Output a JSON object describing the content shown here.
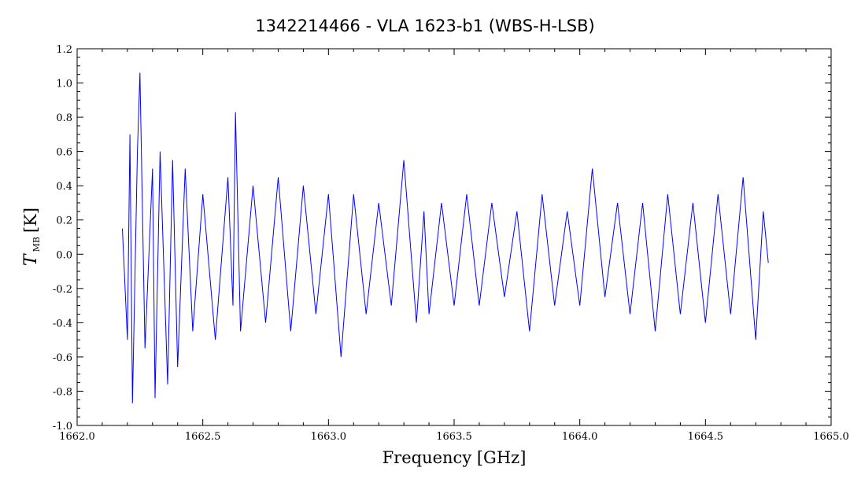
{
  "chart_data": {
    "type": "line",
    "title": "1342214466 - VLA 1623-b1 (WBS-H-LSB)",
    "xlabel": "Frequency [GHz]",
    "ylabel": {
      "symbol": "T",
      "subscript": "MB",
      "unit": "[K]"
    },
    "xlim": [
      1662.0,
      1665.0
    ],
    "ylim": [
      -1.0,
      1.2
    ],
    "x_ticks": [
      "1662.0",
      "1662.5",
      "1663.0",
      "1663.5",
      "1664.0",
      "1664.5",
      "1665.0"
    ],
    "y_ticks": [
      "-1.0",
      "-0.8",
      "-0.6",
      "-0.4",
      "-0.2",
      "0.0",
      "0.2",
      "0.4",
      "0.6",
      "0.8",
      "1.0",
      "1.2"
    ],
    "grid": false,
    "series": [
      {
        "color": "#0000ff",
        "x": [
          1662.18,
          1662.2,
          1662.21,
          1662.22,
          1662.24,
          1662.25,
          1662.27,
          1662.3,
          1662.31,
          1662.33,
          1662.36,
          1662.38,
          1662.4,
          1662.43,
          1662.46,
          1662.5,
          1662.55,
          1662.6,
          1662.62,
          1662.63,
          1662.65,
          1662.7,
          1662.75,
          1662.8,
          1662.85,
          1662.9,
          1662.95,
          1663.0,
          1663.05,
          1663.1,
          1663.15,
          1663.2,
          1663.25,
          1663.3,
          1663.35,
          1663.38,
          1663.4,
          1663.45,
          1663.5,
          1663.55,
          1663.6,
          1663.65,
          1663.7,
          1663.75,
          1663.8,
          1663.85,
          1663.9,
          1663.95,
          1664.0,
          1664.05,
          1664.1,
          1664.15,
          1664.2,
          1664.25,
          1664.3,
          1664.35,
          1664.4,
          1664.45,
          1664.5,
          1664.55,
          1664.6,
          1664.65,
          1664.7,
          1664.73,
          1664.75
        ],
        "y": [
          0.15,
          -0.5,
          0.7,
          -0.87,
          0.6,
          1.06,
          -0.55,
          0.5,
          -0.84,
          0.6,
          -0.76,
          0.55,
          -0.66,
          0.5,
          -0.45,
          0.35,
          -0.5,
          0.45,
          -0.3,
          0.83,
          -0.45,
          0.4,
          -0.4,
          0.45,
          -0.45,
          0.4,
          -0.35,
          0.35,
          -0.6,
          0.35,
          -0.35,
          0.3,
          -0.3,
          0.55,
          -0.4,
          0.25,
          -0.35,
          0.3,
          -0.3,
          0.35,
          -0.3,
          0.3,
          -0.25,
          0.25,
          -0.45,
          0.35,
          -0.3,
          0.25,
          -0.3,
          0.5,
          -0.25,
          0.3,
          -0.35,
          0.3,
          -0.45,
          0.35,
          -0.35,
          0.3,
          -0.4,
          0.35,
          -0.35,
          0.45,
          -0.5,
          0.25,
          -0.05
        ]
      }
    ]
  }
}
